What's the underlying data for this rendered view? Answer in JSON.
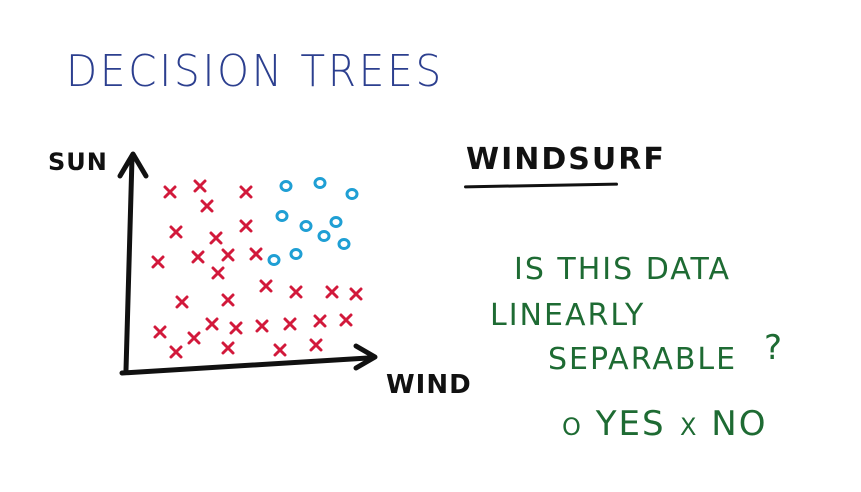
{
  "title": "Decision Trees",
  "plot": {
    "y_label": "Sun",
    "x_label": "Wind",
    "colors": {
      "x_mark": "#d2193b",
      "o_mark": "#1f9fd4",
      "axis": "#111111"
    }
  },
  "subject": "Windsurf",
  "question": {
    "line1": "Is this data",
    "line2": "linearly",
    "line3": "separable",
    "mark": "?"
  },
  "options": [
    {
      "marker": "o",
      "label": "Yes"
    },
    {
      "marker": "x",
      "label": "No"
    }
  ],
  "colors": {
    "title": "#2c3f8f",
    "question": "#1e6b33"
  }
}
